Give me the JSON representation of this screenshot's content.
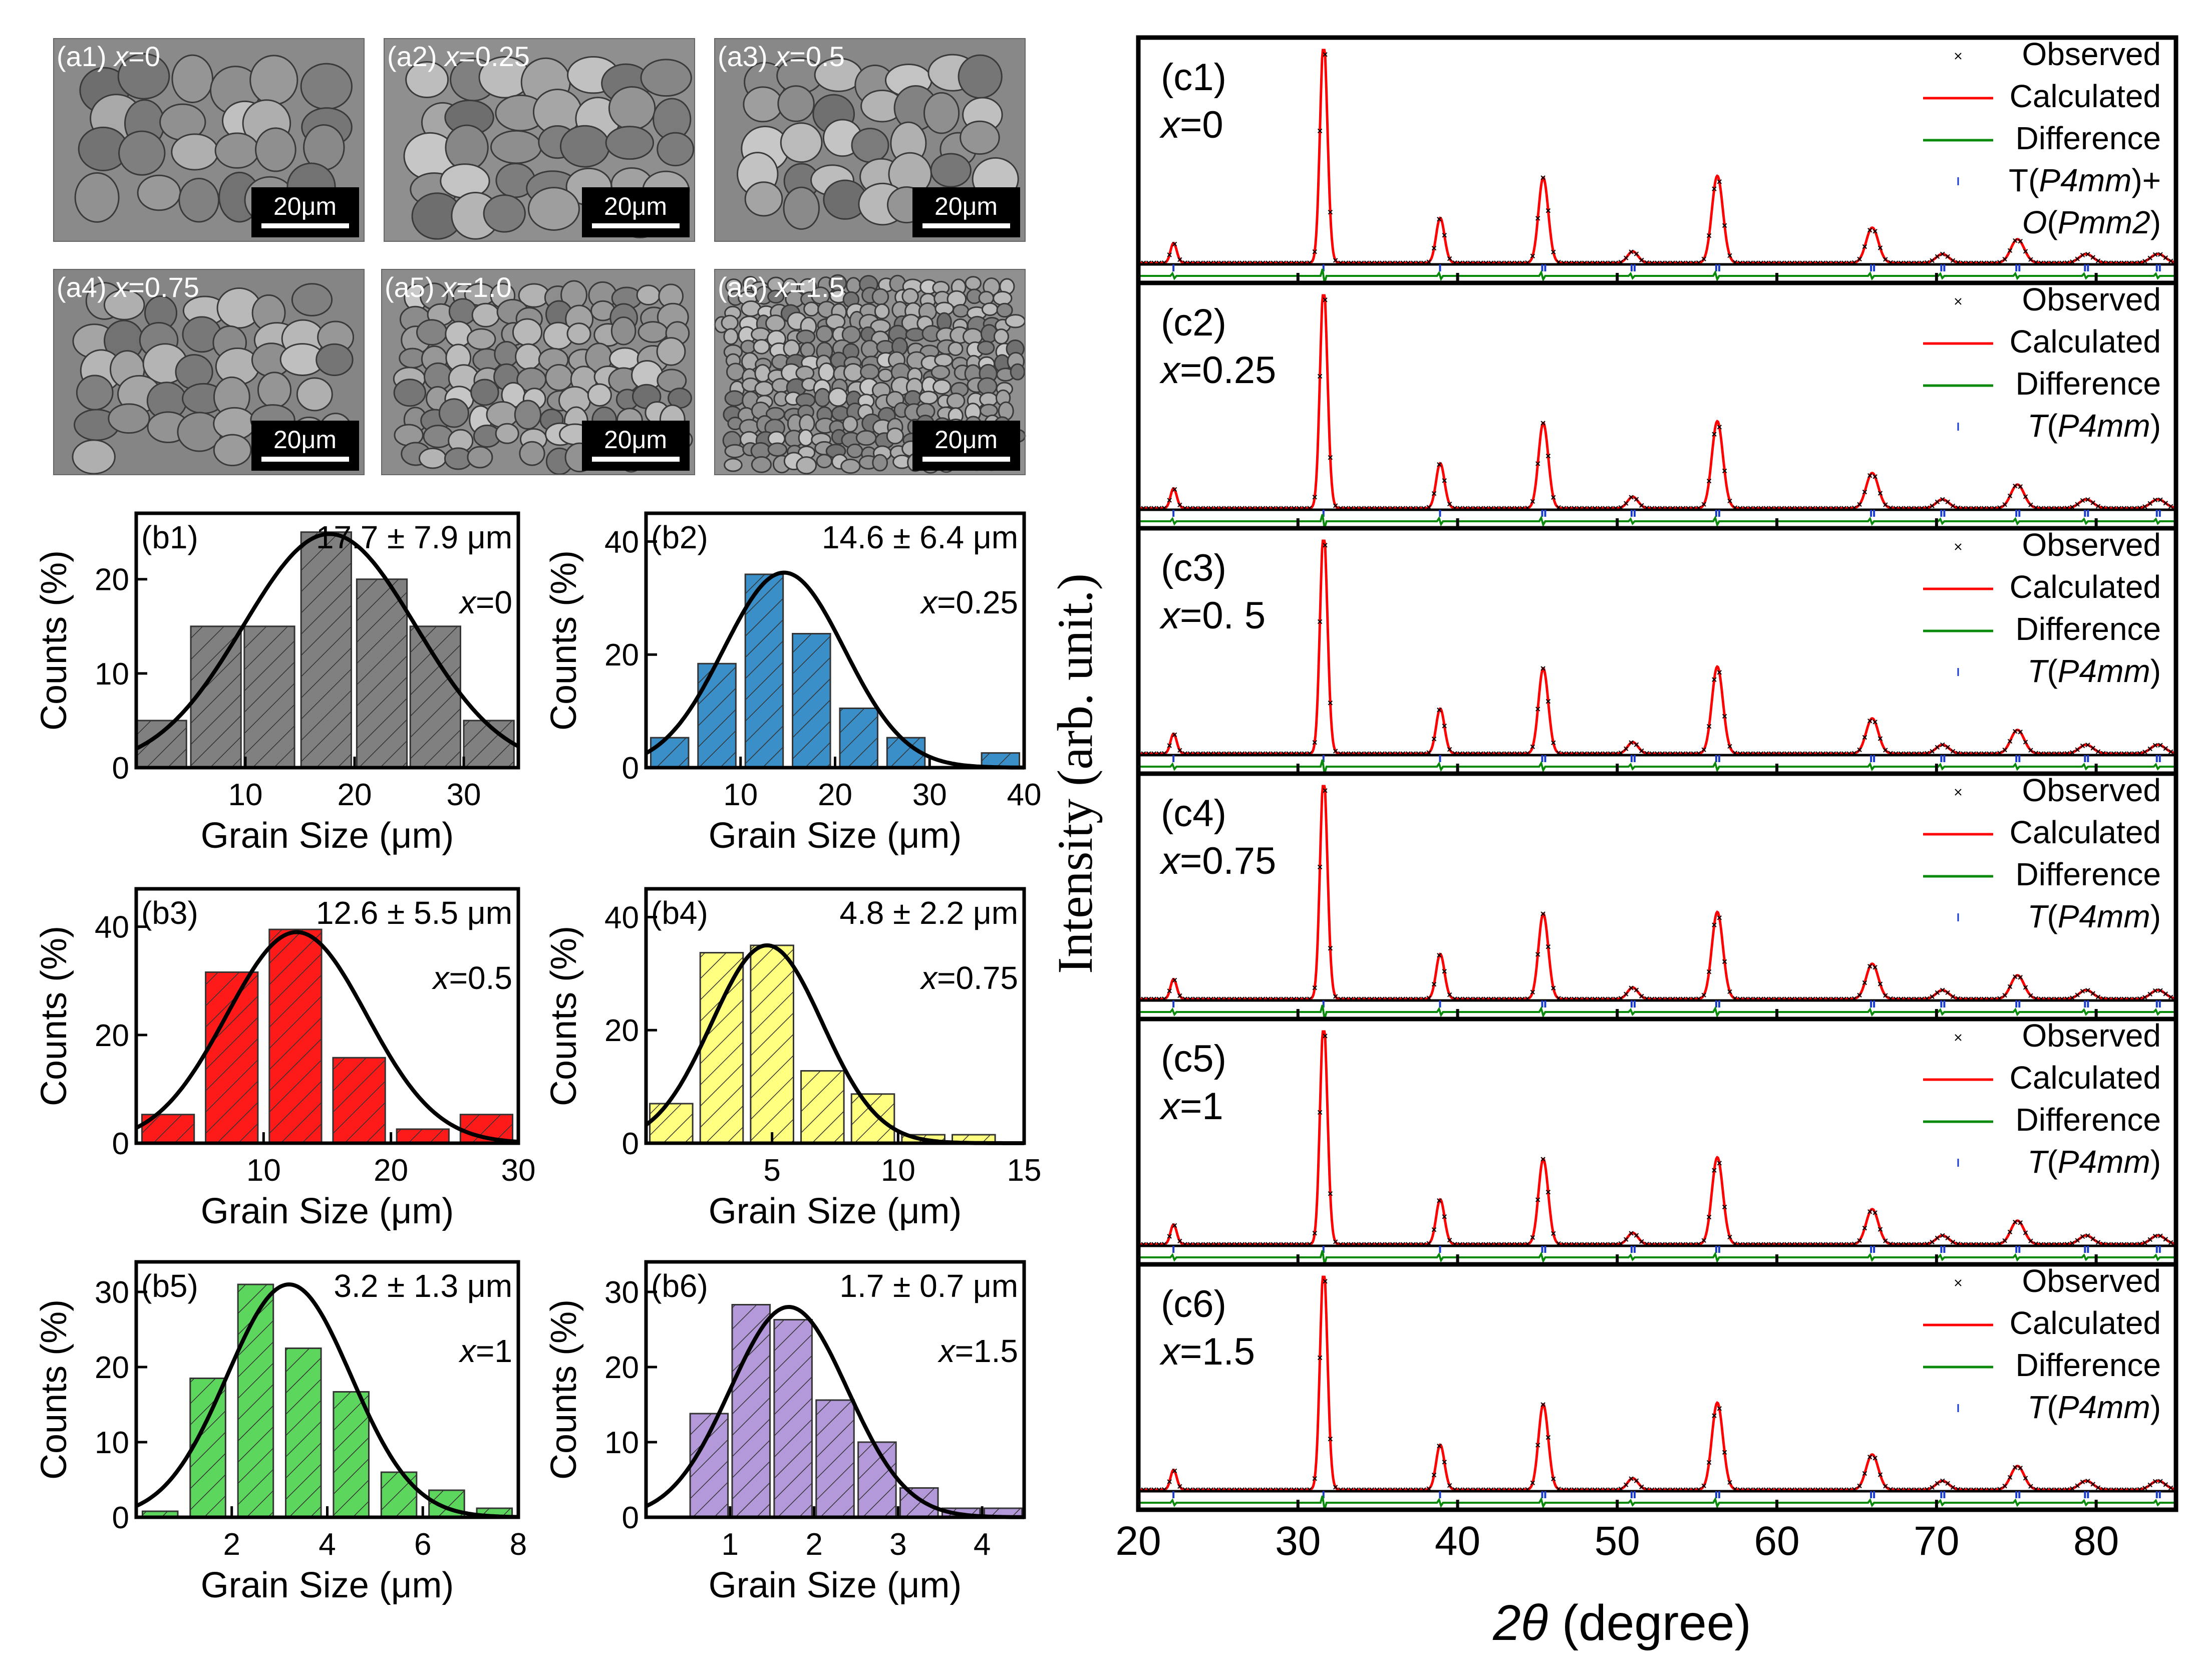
{
  "sem_panels": [
    {
      "label": "(a1) ",
      "x_text": "x",
      "eq": "=0",
      "scale": "20μm"
    },
    {
      "label": "(a2) ",
      "x_text": "x",
      "eq": "=0.25",
      "scale": "20μm"
    },
    {
      "label": "(a3) ",
      "x_text": "x",
      "eq": "=0.5",
      "scale": "20μm"
    },
    {
      "label": "(a4) ",
      "x_text": "x",
      "eq": "=0.75",
      "scale": "20μm"
    },
    {
      "label": "(a5) ",
      "x_text": "x",
      "eq": "=1.0",
      "scale": "20μm"
    },
    {
      "label": "(a6) ",
      "x_text": "x",
      "eq": "=1.5",
      "scale": "20μm"
    }
  ],
  "chart_data": [
    {
      "type": "bar",
      "panel": "(b1)",
      "annotation": "17.7 ± 7.9 μm",
      "x_symbol": "x",
      "x_value": "=0",
      "color": "#808080",
      "xlabel": "Grain Size (μm)",
      "ylabel": "Counts (%)",
      "xlim": [
        0,
        35
      ],
      "ylim": [
        0,
        27
      ],
      "xticks": [
        10,
        20,
        30
      ],
      "yticks": [
        0,
        10,
        20
      ],
      "bin_width": 4.6,
      "bin_centers": [
        2.3,
        7.3,
        12.2,
        17.4,
        22.5,
        27.4,
        32.3
      ],
      "values": [
        5,
        15,
        15,
        25,
        20,
        15,
        5
      ],
      "fit": {
        "type": "gaussian",
        "mean": 17.7,
        "sigma": 7.9,
        "peak": 24.8
      }
    },
    {
      "type": "bar",
      "panel": "(b2)",
      "annotation": "14.6 ± 6.4 μm",
      "x_symbol": "x",
      "x_value": "=0.25",
      "color": "#3a8fc9",
      "xlabel": "Grain Size (μm)",
      "ylabel": "Counts (%)",
      "xlim": [
        0,
        40
      ],
      "ylim": [
        0,
        45
      ],
      "xticks": [
        10,
        20,
        30,
        40
      ],
      "yticks": [
        0,
        20,
        40
      ],
      "bin_width": 4.0,
      "bin_centers": [
        2.5,
        7.5,
        12.5,
        17.5,
        22.5,
        27.5,
        32.5,
        37.5
      ],
      "values": [
        5.3,
        18.4,
        34.2,
        23.7,
        10.5,
        5.3,
        0,
        2.6
      ],
      "fit": {
        "type": "gaussian",
        "mean": 14.6,
        "sigma": 6.4,
        "peak": 34.5
      }
    },
    {
      "type": "bar",
      "panel": "(b3)",
      "annotation": "12.6 ± 5.5 μm",
      "x_symbol": "x",
      "x_value": "=0.5",
      "color": "#ff1a1a",
      "xlabel": "Grain Size (μm)",
      "ylabel": "Counts (%)",
      "xlim": [
        0,
        30
      ],
      "ylim": [
        0,
        47
      ],
      "xticks": [
        10,
        20,
        30
      ],
      "yticks": [
        0,
        20,
        40
      ],
      "bin_width": 4.1,
      "bin_centers": [
        2.5,
        7.5,
        12.5,
        17.5,
        22.5,
        27.5
      ],
      "values": [
        5.3,
        31.6,
        39.5,
        15.8,
        2.6,
        5.3
      ],
      "fit": {
        "type": "gaussian",
        "mean": 12.6,
        "sigma": 5.5,
        "peak": 39
      }
    },
    {
      "type": "bar",
      "panel": "(b4)",
      "annotation": "4.8 ± 2.2 μm",
      "x_symbol": "x",
      "x_value": "=0.75",
      "color": "#ffff80",
      "xlabel": "Grain Size (μm)",
      "ylabel": "Counts (%)",
      "xlim": [
        0,
        15
      ],
      "ylim": [
        0,
        45
      ],
      "xticks": [
        5,
        10,
        15
      ],
      "yticks": [
        0,
        20,
        40
      ],
      "bin_width": 1.7,
      "bin_centers": [
        1,
        3,
        5,
        7,
        9,
        11,
        13
      ],
      "values": [
        7,
        33.7,
        35,
        12.8,
        8.7,
        1.5,
        1.5
      ],
      "fit": {
        "type": "gaussian",
        "mean": 4.8,
        "sigma": 2.2,
        "peak": 35
      }
    },
    {
      "type": "bar",
      "panel": "(b5)",
      "annotation": "3.2 ± 1.3 μm",
      "x_symbol": "x",
      "x_value": "=1",
      "color": "#5cd65c",
      "xlabel": "Grain Size (μm)",
      "ylabel": "Counts (%)",
      "xlim": [
        0,
        8
      ],
      "ylim": [
        0,
        34
      ],
      "xticks": [
        2,
        4,
        6,
        8
      ],
      "yticks": [
        0,
        10,
        20,
        30
      ],
      "bin_width": 0.74,
      "bin_centers": [
        0.5,
        1.5,
        2.5,
        3.5,
        4.5,
        5.5,
        6.5,
        7.5
      ],
      "values": [
        0.8,
        18.5,
        31,
        22.5,
        16.7,
        6,
        3.6,
        1.2
      ],
      "fit": {
        "type": "gaussian",
        "mean": 3.2,
        "sigma": 1.3,
        "peak": 31
      }
    },
    {
      "type": "bar",
      "panel": "(b6)",
      "annotation": "1.7 ± 0.7 μm",
      "x_symbol": "x",
      "x_value": "=1.5",
      "color": "#b399d9",
      "xlabel": "Grain Size (μm)",
      "ylabel": "Counts (%)",
      "xlim": [
        0,
        4.5
      ],
      "ylim": [
        0,
        34
      ],
      "xticks": [
        1,
        2,
        3,
        4
      ],
      "yticks": [
        0,
        10,
        20,
        30
      ],
      "bin_width": 0.45,
      "bin_centers": [
        0.25,
        0.75,
        1.25,
        1.75,
        2.25,
        2.75,
        3.25,
        3.75,
        4.25
      ],
      "values": [
        0,
        13.8,
        28.3,
        26.3,
        15.6,
        10,
        3.9,
        1.2,
        1.2
      ],
      "fit": {
        "type": "gaussian",
        "mean": 1.7,
        "sigma": 0.7,
        "peak": 28
      }
    },
    {
      "type": "line",
      "panel": "(c)",
      "title": "",
      "xlabel_prefix": "2",
      "xlabel_theta": "θ",
      "xlabel_suffix": " (degree)",
      "ylabel": "Intensity (arb. unit.)",
      "xlim": [
        20,
        85
      ],
      "xticks": [
        20,
        30,
        40,
        50,
        60,
        70,
        80
      ],
      "series_names": [
        "Observed",
        "Calculated",
        "Difference"
      ],
      "peaks": [
        {
          "x": 22.2,
          "h": 0.09
        },
        {
          "x": 31.6,
          "h": 1.0
        },
        {
          "x": 38.9,
          "h": 0.2
        },
        {
          "x": 45.3,
          "h": 0.3
        },
        {
          "x": 50.9,
          "h": 0.04
        },
        {
          "x": 56.2,
          "h": 0.3
        },
        {
          "x": 65.9,
          "h": 0.12
        },
        {
          "x": 70.3,
          "h": 0.03
        },
        {
          "x": 75.0,
          "h": 0.08
        },
        {
          "x": 79.3,
          "h": 0.03
        },
        {
          "x": 83.8,
          "h": 0.03
        }
      ],
      "subpanels": [
        {
          "label": "(c1)",
          "x_symbol": "x",
          "x_value": "=0",
          "legend_phase": [
            {
              "t": "T",
              "i": false
            },
            {
              "t": "(",
              "i": false
            },
            {
              "t": "P4mm",
              "i": true
            },
            {
              "t": ")+",
              "i": false
            }
          ],
          "legend_phase2": [
            {
              "t": "O",
              "i": true
            },
            {
              "t": "(",
              "i": false
            },
            {
              "t": "Pmm2",
              "i": true
            },
            {
              "t": ")",
              "i": false
            }
          ]
        },
        {
          "label": "(c2)",
          "x_symbol": "x",
          "x_value": "=0.25",
          "legend_phase": [
            {
              "t": "T",
              "i": true
            },
            {
              "t": "(",
              "i": false
            },
            {
              "t": "P4mm",
              "i": true
            },
            {
              "t": ")",
              "i": false
            }
          ]
        },
        {
          "label": "(c3)",
          "x_symbol": "x",
          "x_value": "=0. 5",
          "legend_phase": [
            {
              "t": "T",
              "i": true
            },
            {
              "t": "(",
              "i": false
            },
            {
              "t": "P4mm",
              "i": true
            },
            {
              "t": ")",
              "i": false
            }
          ]
        },
        {
          "label": "(c4)",
          "x_symbol": "x",
          "x_value": "=0.75",
          "legend_phase": [
            {
              "t": "T",
              "i": true
            },
            {
              "t": "(",
              "i": false
            },
            {
              "t": "P4mm",
              "i": true
            },
            {
              "t": ")",
              "i": false
            }
          ]
        },
        {
          "label": "(c5)",
          "x_symbol": "x",
          "x_value": "=1",
          "legend_phase": [
            {
              "t": "T",
              "i": true
            },
            {
              "t": "(",
              "i": false
            },
            {
              "t": "P4mm",
              "i": true
            },
            {
              "t": ")",
              "i": false
            }
          ]
        },
        {
          "label": "(c6)",
          "x_symbol": "x",
          "x_value": "=1.5",
          "legend_phase": [
            {
              "t": "T",
              "i": true
            },
            {
              "t": "(",
              "i": false
            },
            {
              "t": "P4mm",
              "i": true
            },
            {
              "t": ")",
              "i": false
            }
          ]
        }
      ]
    }
  ]
}
